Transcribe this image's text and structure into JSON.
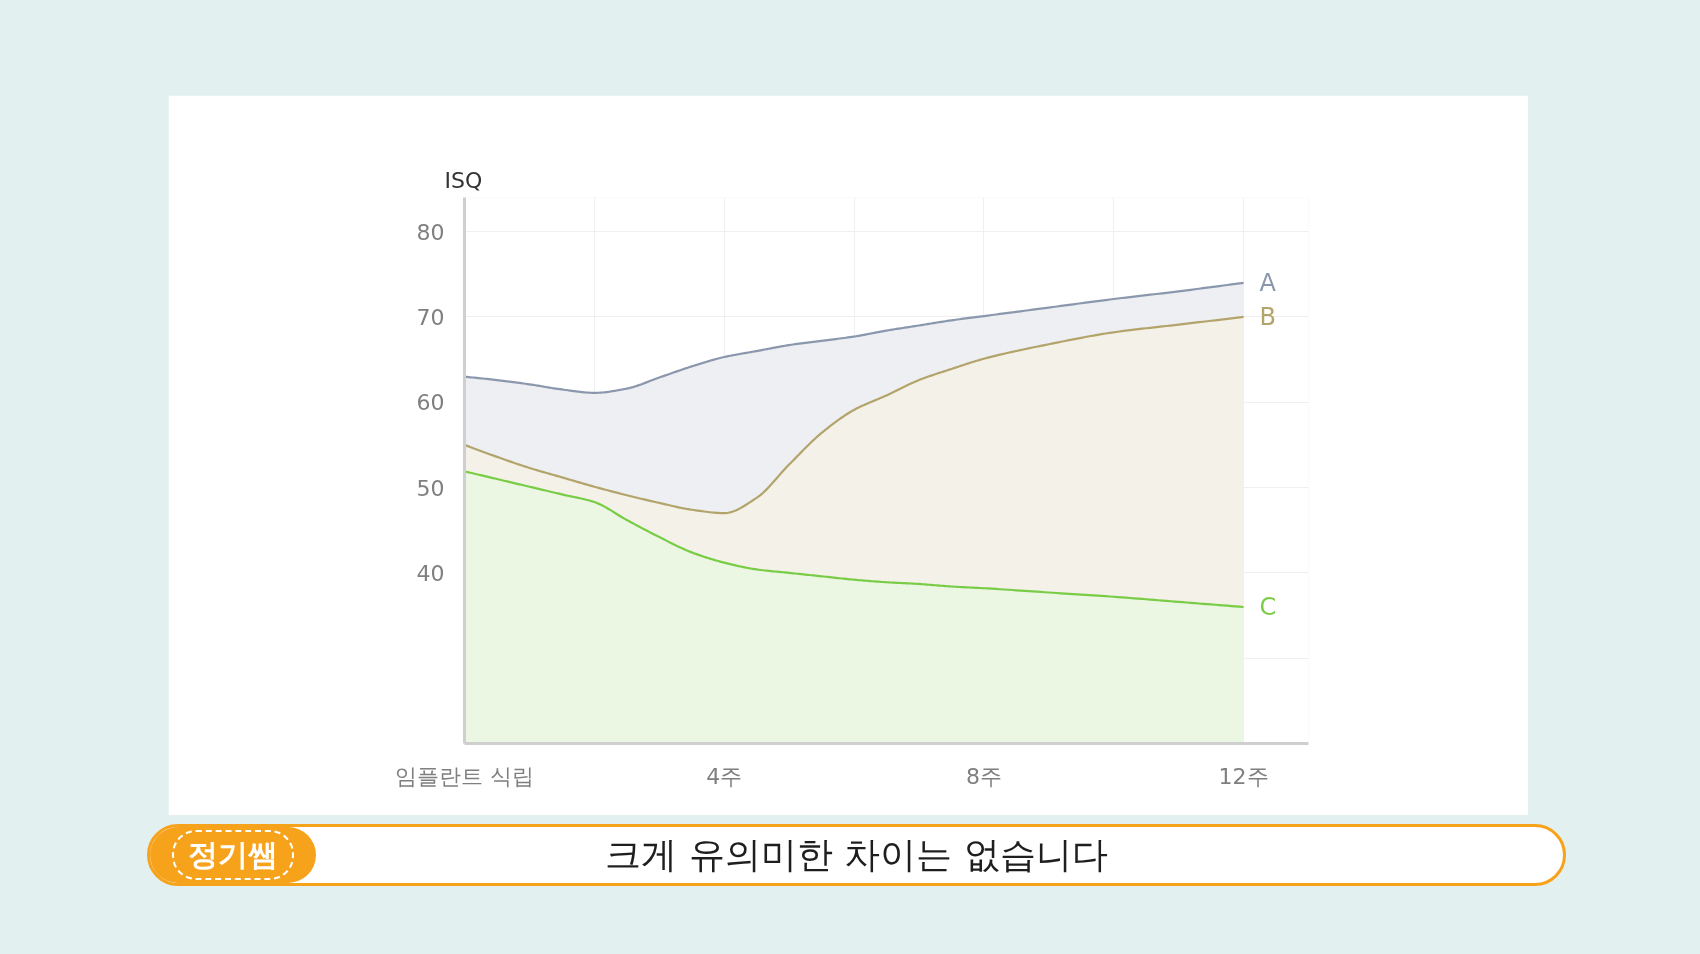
{
  "chart_data": {
    "type": "area",
    "ylabel": "ISQ",
    "x": [
      0,
      0.5,
      1,
      1.5,
      2,
      2.5,
      3,
      3.5,
      4,
      4.5,
      5,
      5.5,
      6,
      6.5,
      7,
      7.5,
      8,
      9,
      10,
      11,
      12
    ],
    "xlim": [
      0,
      13
    ],
    "xticks": [
      {
        "value": 0,
        "label": "임플란트 식립"
      },
      {
        "value": 2,
        "label": null
      },
      {
        "value": 4,
        "label": "4주"
      },
      {
        "value": 6,
        "label": null
      },
      {
        "value": 8,
        "label": "8주"
      },
      {
        "value": 10,
        "label": null
      },
      {
        "value": 12,
        "label": "12주"
      }
    ],
    "ylim": [
      20,
      84
    ],
    "yticks": [
      {
        "value": 30,
        "label": null
      },
      40,
      50,
      60,
      70,
      80
    ],
    "grid": true,
    "series": [
      {
        "name": "A",
        "color": "#8a97ad",
        "values": [
          63.0,
          62.6,
          62.1,
          61.5,
          61.1,
          61.6,
          62.9,
          64.2,
          65.3,
          66.0,
          66.7,
          67.2,
          67.7,
          68.4,
          69.0,
          69.6,
          70.1,
          71.1,
          72.1,
          73.0,
          74.0
        ]
      },
      {
        "name": "B",
        "color": "#b3a46b",
        "values": [
          55.0,
          53.6,
          52.3,
          51.2,
          50.1,
          49.1,
          48.2,
          47.4,
          47.0,
          48.8,
          52.7,
          56.4,
          59.1,
          60.8,
          62.6,
          63.9,
          65.1,
          66.8,
          68.2,
          69.1,
          70.0
        ]
      },
      {
        "name": "C",
        "color": "#79cc45",
        "values": [
          51.9,
          51.0,
          50.1,
          49.2,
          48.3,
          46.2,
          44.2,
          42.4,
          41.2,
          40.4,
          40.0,
          39.6,
          39.2,
          38.9,
          38.7,
          38.4,
          38.2,
          37.7,
          37.2,
          36.6,
          36.0
        ]
      }
    ],
    "annotations": [
      "정기쌤",
      "크게 유의미한 차이는 없습니다"
    ]
  }
}
